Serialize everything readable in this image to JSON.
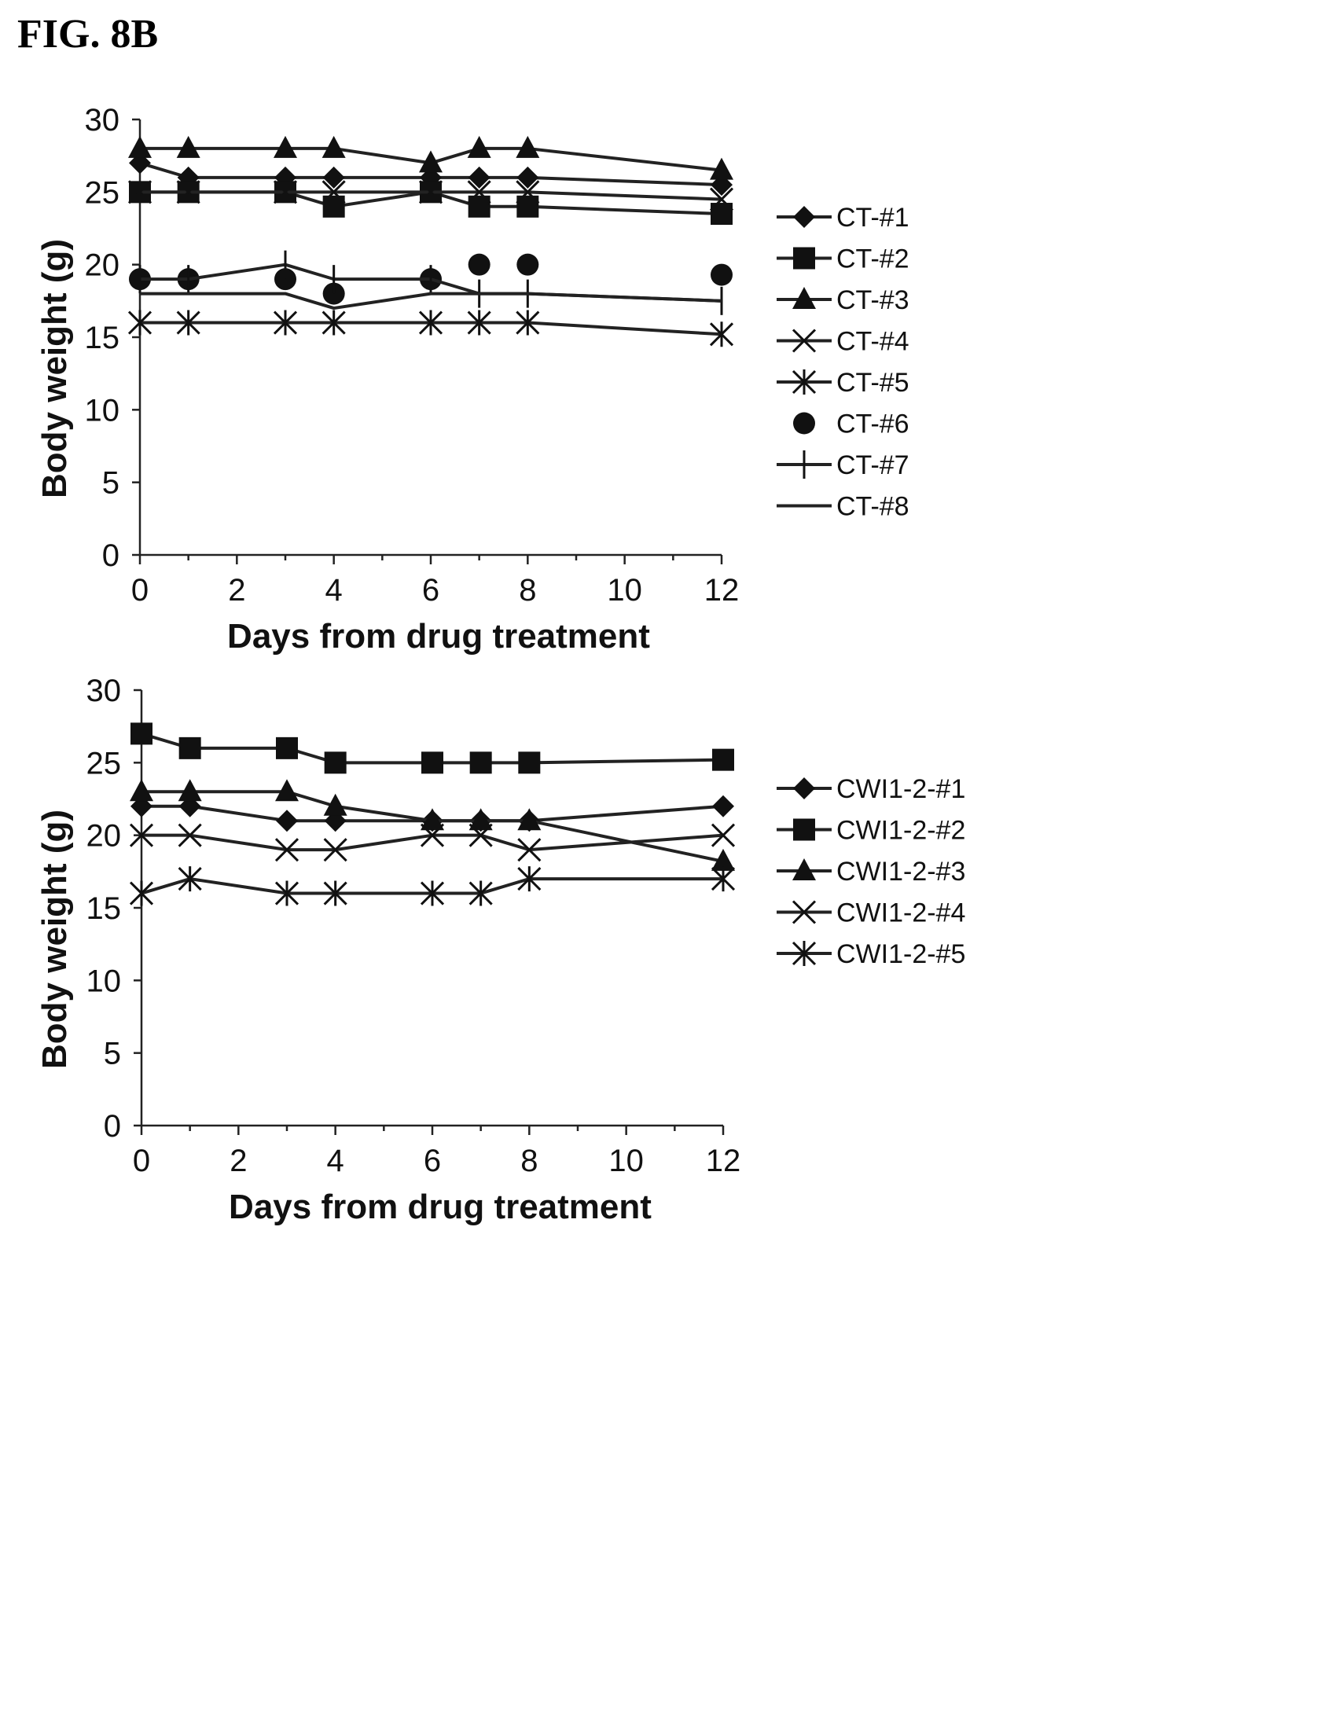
{
  "figure_label": "FIG. 8B",
  "chart_data": [
    {
      "type": "line",
      "xlabel": "Days from drug treatment",
      "ylabel": "Body weight (g)",
      "xlim": [
        0,
        12
      ],
      "ylim": [
        0,
        30
      ],
      "xticks": [
        0,
        2,
        4,
        6,
        8,
        10,
        12
      ],
      "yticks": [
        0,
        5,
        10,
        15,
        20,
        25,
        30
      ],
      "grid": false,
      "legend_position": "right",
      "series": [
        {
          "name": "CT-#1",
          "marker": "diamond",
          "line": true,
          "points": [
            [
              0,
              27
            ],
            [
              1,
              26
            ],
            [
              3,
              26
            ],
            [
              4,
              26
            ],
            [
              6,
              26
            ],
            [
              7,
              26
            ],
            [
              8,
              26
            ],
            [
              12,
              25.5
            ]
          ]
        },
        {
          "name": "CT-#2",
          "marker": "square",
          "line": true,
          "points": [
            [
              0,
              25
            ],
            [
              1,
              25
            ],
            [
              3,
              25
            ],
            [
              4,
              24
            ],
            [
              6,
              25
            ],
            [
              7,
              24
            ],
            [
              8,
              24
            ],
            [
              12,
              23.5
            ]
          ]
        },
        {
          "name": "CT-#3",
          "marker": "triangle",
          "line": true,
          "points": [
            [
              0,
              28
            ],
            [
              1,
              28
            ],
            [
              3,
              28
            ],
            [
              4,
              28
            ],
            [
              6,
              27
            ],
            [
              7,
              28
            ],
            [
              8,
              28
            ],
            [
              12,
              26.5
            ]
          ]
        },
        {
          "name": "CT-#4",
          "marker": "x",
          "line": true,
          "points": [
            [
              0,
              25
            ],
            [
              1,
              25
            ],
            [
              3,
              25
            ],
            [
              4,
              25
            ],
            [
              6,
              25
            ],
            [
              7,
              25
            ],
            [
              8,
              25
            ],
            [
              12,
              24.5
            ]
          ]
        },
        {
          "name": "CT-#5",
          "marker": "star",
          "line": true,
          "points": [
            [
              0,
              16
            ],
            [
              1,
              16
            ],
            [
              3,
              16
            ],
            [
              4,
              16
            ],
            [
              6,
              16
            ],
            [
              7,
              16
            ],
            [
              8,
              16
            ],
            [
              12,
              15.2
            ]
          ]
        },
        {
          "name": "CT-#6",
          "marker": "circle",
          "line": false,
          "points": [
            [
              0,
              19
            ],
            [
              1,
              19
            ],
            [
              3,
              19
            ],
            [
              4,
              18
            ],
            [
              6,
              19
            ],
            [
              7,
              20
            ],
            [
              8,
              20
            ],
            [
              12,
              19.3
            ]
          ]
        },
        {
          "name": "CT-#7",
          "marker": "plus",
          "line": true,
          "points": [
            [
              0,
              19
            ],
            [
              1,
              19
            ],
            [
              3,
              20
            ],
            [
              4,
              19
            ],
            [
              6,
              19
            ],
            [
              7,
              18
            ],
            [
              8,
              18
            ],
            [
              12,
              17.5
            ]
          ]
        },
        {
          "name": "CT-#8",
          "marker": "none",
          "line": true,
          "points": [
            [
              0,
              18
            ],
            [
              1,
              18
            ],
            [
              3,
              18
            ],
            [
              4,
              17
            ],
            [
              6,
              18
            ],
            [
              7,
              18
            ],
            [
              8,
              18
            ],
            [
              12,
              17.5
            ]
          ]
        }
      ]
    },
    {
      "type": "line",
      "xlabel": "Days from drug treatment",
      "ylabel": "Body weight (g)",
      "xlim": [
        0,
        12
      ],
      "ylim": [
        0,
        30
      ],
      "xticks": [
        0,
        2,
        4,
        6,
        8,
        10,
        12
      ],
      "yticks": [
        0,
        5,
        10,
        15,
        20,
        25,
        30
      ],
      "grid": false,
      "legend_position": "right",
      "series": [
        {
          "name": "CWI1-2-#1",
          "marker": "diamond",
          "line": true,
          "points": [
            [
              0,
              22
            ],
            [
              1,
              22
            ],
            [
              3,
              21
            ],
            [
              4,
              21
            ],
            [
              6,
              21
            ],
            [
              7,
              21
            ],
            [
              8,
              21
            ],
            [
              12,
              22
            ]
          ]
        },
        {
          "name": "CWI1-2-#2",
          "marker": "square",
          "line": true,
          "points": [
            [
              0,
              27
            ],
            [
              1,
              26
            ],
            [
              3,
              26
            ],
            [
              4,
              25
            ],
            [
              6,
              25
            ],
            [
              7,
              25
            ],
            [
              8,
              25
            ],
            [
              12,
              25.2
            ]
          ]
        },
        {
          "name": "CWI1-2-#3",
          "marker": "triangle",
          "line": true,
          "points": [
            [
              0,
              23
            ],
            [
              1,
              23
            ],
            [
              3,
              23
            ],
            [
              4,
              22
            ],
            [
              6,
              21
            ],
            [
              7,
              21
            ],
            [
              8,
              21
            ],
            [
              12,
              18.2
            ]
          ]
        },
        {
          "name": "CWI1-2-#4",
          "marker": "x",
          "line": true,
          "points": [
            [
              0,
              20
            ],
            [
              1,
              20
            ],
            [
              3,
              19
            ],
            [
              4,
              19
            ],
            [
              6,
              20
            ],
            [
              7,
              20
            ],
            [
              8,
              19
            ],
            [
              12,
              20
            ]
          ]
        },
        {
          "name": "CWI1-2-#5",
          "marker": "star",
          "line": true,
          "points": [
            [
              0,
              16
            ],
            [
              1,
              17
            ],
            [
              3,
              16
            ],
            [
              4,
              16
            ],
            [
              6,
              16
            ],
            [
              7,
              16
            ],
            [
              8,
              17
            ],
            [
              12,
              17
            ]
          ]
        }
      ]
    }
  ]
}
